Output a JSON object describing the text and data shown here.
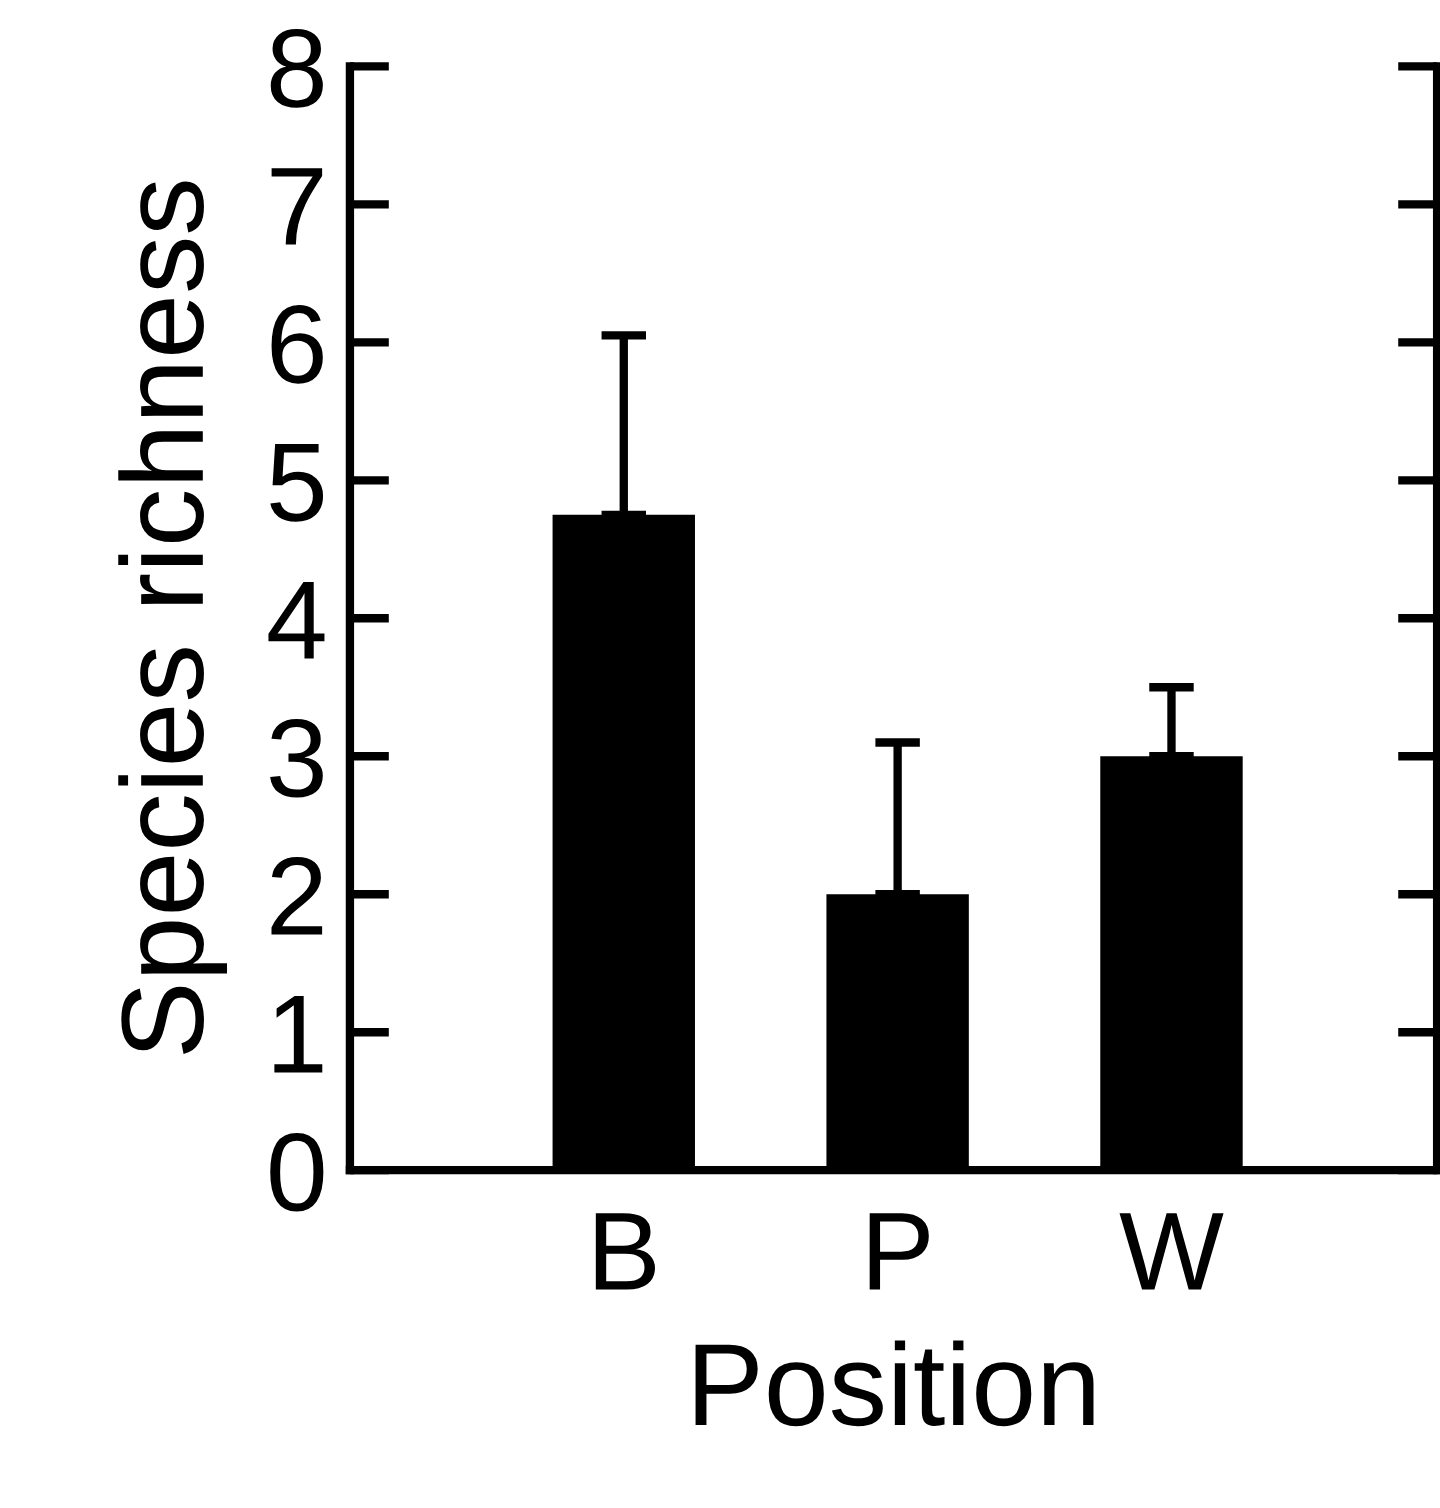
{
  "chart_data": {
    "type": "bar",
    "xlabel": "Position",
    "ylabel": "Species richness",
    "categories": [
      "B",
      "P",
      "W"
    ],
    "values": [
      4.75,
      2.0,
      3.0
    ],
    "errors": [
      [
        4.75,
        6.05
      ],
      [
        2.0,
        3.1
      ],
      [
        3.0,
        3.5
      ]
    ],
    "color": "#000000",
    "ylim": [
      0,
      8
    ],
    "yticks": [
      0,
      1,
      2,
      3,
      4,
      5,
      6,
      7,
      8
    ],
    "grid": false,
    "legend": false
  }
}
